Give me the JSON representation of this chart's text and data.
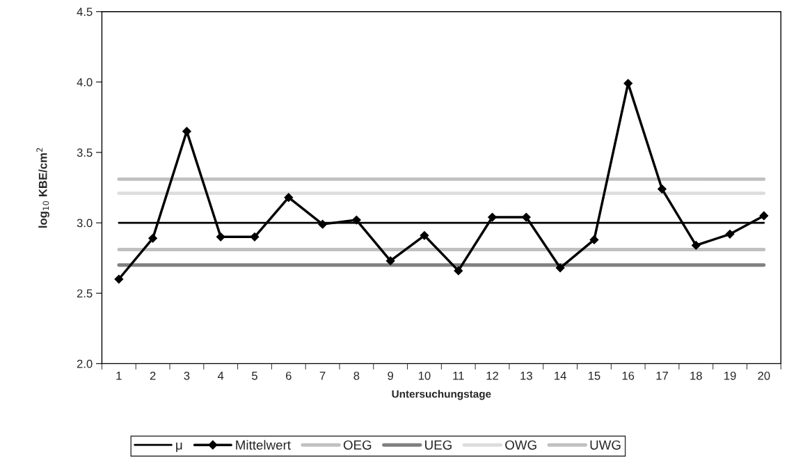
{
  "chart_data": {
    "type": "line",
    "xlabel": "Untersuchungstage",
    "ylabel": "log$_{10}$ KBE/cm$^{2}$",
    "categories": [
      "1",
      "2",
      "3",
      "4",
      "5",
      "6",
      "7",
      "8",
      "9",
      "10",
      "11",
      "12",
      "13",
      "14",
      "15",
      "16",
      "17",
      "18",
      "19",
      "20"
    ],
    "series": [
      {
        "name": "μ",
        "color": "#000000",
        "marker": "none",
        "values": [
          3.0,
          3.0,
          3.0,
          3.0,
          3.0,
          3.0,
          3.0,
          3.0,
          3.0,
          3.0,
          3.0,
          3.0,
          3.0,
          3.0,
          3.0,
          3.0,
          3.0,
          3.0,
          3.0,
          3.0
        ]
      },
      {
        "name": "Mittelwert",
        "color": "#000000",
        "marker": "diamond",
        "values": [
          2.6,
          2.89,
          3.65,
          2.9,
          2.9,
          3.18,
          2.99,
          3.02,
          2.73,
          2.91,
          2.66,
          3.04,
          3.04,
          2.68,
          2.88,
          3.99,
          3.24,
          2.84,
          2.92,
          3.05
        ]
      },
      {
        "name": "OEG",
        "color": "#c0c0c0",
        "marker": "none",
        "values": [
          3.31,
          3.31,
          3.31,
          3.31,
          3.31,
          3.31,
          3.31,
          3.31,
          3.31,
          3.31,
          3.31,
          3.31,
          3.31,
          3.31,
          3.31,
          3.31,
          3.31,
          3.31,
          3.31,
          3.31
        ]
      },
      {
        "name": "UEG",
        "color": "#808080",
        "marker": "none",
        "values": [
          2.7,
          2.7,
          2.7,
          2.7,
          2.7,
          2.7,
          2.7,
          2.7,
          2.7,
          2.7,
          2.7,
          2.7,
          2.7,
          2.7,
          2.7,
          2.7,
          2.7,
          2.7,
          2.7,
          2.7
        ]
      },
      {
        "name": "OWG",
        "color": "#dddddd",
        "marker": "none",
        "values": [
          3.21,
          3.21,
          3.21,
          3.21,
          3.21,
          3.21,
          3.21,
          3.21,
          3.21,
          3.21,
          3.21,
          3.21,
          3.21,
          3.21,
          3.21,
          3.21,
          3.21,
          3.21,
          3.21,
          3.21
        ]
      },
      {
        "name": "UWG",
        "color": "#c0c0c0",
        "marker": "none",
        "values": [
          2.81,
          2.81,
          2.81,
          2.81,
          2.81,
          2.81,
          2.81,
          2.81,
          2.81,
          2.81,
          2.81,
          2.81,
          2.81,
          2.81,
          2.81,
          2.81,
          2.81,
          2.81,
          2.81,
          2.81
        ]
      }
    ],
    "ylim": [
      2.0,
      4.5
    ],
    "yticks": [
      {
        "value": 2,
        "label": "2.0"
      },
      2.5,
      {
        "value": 3,
        "label": "3.0"
      },
      3.5,
      {
        "value": 4,
        "label": "4.0"
      },
      4.5
    ],
    "grid": false,
    "legend": "bottom"
  }
}
